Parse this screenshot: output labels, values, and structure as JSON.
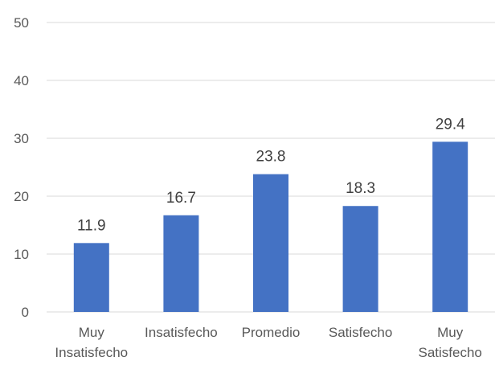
{
  "chart_data": {
    "type": "bar",
    "categories": [
      [
        "Muy",
        "Insatisfecho"
      ],
      [
        "Insatisfecho"
      ],
      [
        "Promedio"
      ],
      [
        "Satisfecho"
      ],
      [
        "Muy",
        "Satisfecho"
      ]
    ],
    "values": [
      11.9,
      16.7,
      23.8,
      18.3,
      29.4
    ],
    "value_labels": [
      "11.9",
      "16.7",
      "23.8",
      "18.3",
      "29.4"
    ],
    "yticks": [
      "0",
      "10",
      "20",
      "30",
      "40",
      "50"
    ],
    "ylim": [
      0,
      50
    ],
    "grid": true,
    "legend": "none",
    "colors": {
      "bar": "#4472C4",
      "grid": "#D9D9D9"
    }
  }
}
